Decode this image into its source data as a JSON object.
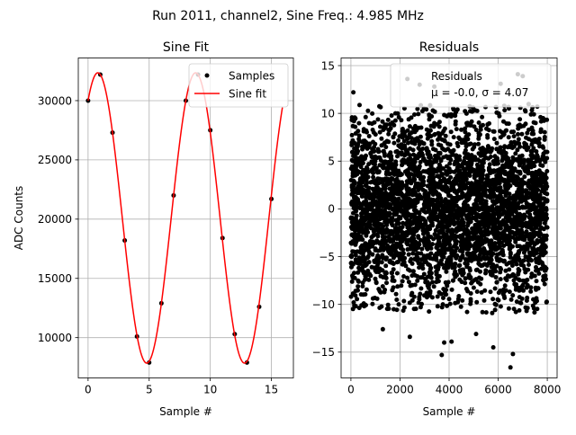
{
  "figure": {
    "suptitle": "Run 2011, channel2, Sine Freq.: 4.985 MHz"
  },
  "chart_data": [
    {
      "type": "scatter",
      "title": "Sine Fit",
      "xlabel": "Sample #",
      "ylabel": "ADC Counts",
      "xlim": [
        -0.8,
        16.8
      ],
      "ylim": [
        6600,
        33600
      ],
      "xticks": [
        0,
        5,
        10,
        15
      ],
      "yticks": [
        10000,
        15000,
        20000,
        25000,
        30000
      ],
      "grid": true,
      "legend_position": "top-right",
      "series": [
        {
          "name": "Samples",
          "kind": "scatter",
          "color": "#000000",
          "x": [
            0,
            1,
            2,
            3,
            4,
            5,
            6,
            7,
            8,
            9,
            10,
            11,
            12,
            13,
            14,
            15
          ],
          "y": [
            30000,
            32200,
            27300,
            18200,
            10100,
            7900,
            12900,
            22000,
            30000,
            32200,
            27500,
            18400,
            10300,
            7900,
            12600,
            21700
          ]
        },
        {
          "name": "Sine fit",
          "kind": "line",
          "color": "#ff0000",
          "model": {
            "offset": 20100,
            "amplitude": 12250,
            "period": 8.0,
            "phase_sample": 0.8,
            "x_range": [
              0,
              15.9
            ]
          }
        }
      ]
    },
    {
      "type": "scatter",
      "title": "Residuals",
      "xlabel": "Sample #",
      "ylabel": "",
      "xlim": [
        -400,
        8400
      ],
      "ylim": [
        -17.7,
        15.8
      ],
      "xticks": [
        0,
        2000,
        4000,
        6000,
        8000
      ],
      "yticks": [
        -15,
        -10,
        -5,
        0,
        5,
        10,
        15
      ],
      "grid": true,
      "legend_position": "top-right",
      "legend_lines": [
        "Residuals",
        "μ = -0.0, σ = 4.07"
      ],
      "series": [
        {
          "name": "Residuals",
          "kind": "scatter",
          "color": "#000000",
          "n_points": 8000,
          "mean": 0.0,
          "sigma": 4.07,
          "x_range": [
            0,
            7999
          ],
          "outliers_x": [
            100,
            2300,
            2400,
            3400,
            3700,
            3800,
            4800,
            5100,
            5800,
            6100,
            6500,
            6800,
            7000,
            1300,
            4100,
            6600,
            2800
          ],
          "outliers_y": [
            12.2,
            13.6,
            -13.4,
            12.8,
            -15.3,
            -14.0,
            13.8,
            -13.1,
            -14.5,
            13.1,
            -16.6,
            14.1,
            13.9,
            -12.6,
            -13.9,
            -15.2,
            13.0
          ]
        }
      ]
    }
  ]
}
